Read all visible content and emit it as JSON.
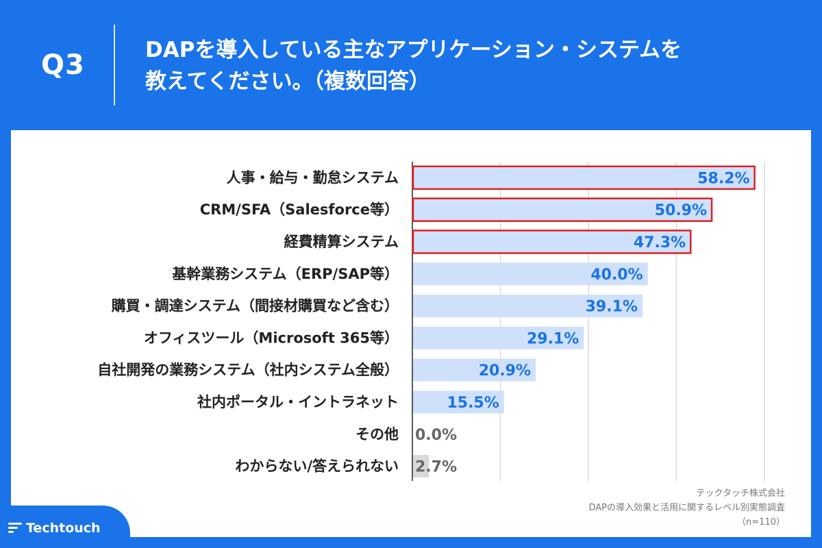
{
  "header": {
    "question_number": "Q3",
    "question_line1": "DAPを導入している主なアプリケーション・システムを",
    "question_line2": "教えてください。（複数回答）"
  },
  "chart_data": {
    "type": "bar",
    "orientation": "horizontal",
    "categories": [
      "人事・給与・勤怠システム",
      "CRM/SFA（Salesforce等）",
      "経費精算システム",
      "基幹業務システム（ERP/SAP等）",
      "購買・調達システム（間接材購買など含む）",
      "オフィスツール（Microsoft 365等）",
      "自社開発の業務システム（社内システム全般）",
      "社内ポータル・イントラネット",
      "その他",
      "わからない/答えられない"
    ],
    "values": [
      58.2,
      50.9,
      47.3,
      40.0,
      39.1,
      29.1,
      20.9,
      15.5,
      0.0,
      2.7
    ],
    "value_labels": [
      "58.2%",
      "50.9%",
      "47.3%",
      "40.0%",
      "39.1%",
      "29.1%",
      "20.9%",
      "15.5%",
      "0.0%",
      "2.7%"
    ],
    "highlighted": [
      true,
      true,
      true,
      false,
      false,
      false,
      false,
      false,
      false,
      false
    ],
    "xlim": [
      0,
      60
    ],
    "gridlines": [
      15,
      30,
      45,
      60
    ],
    "grid": true,
    "bar_color": "#cfe0fb",
    "gray_bar_color": "#d9d9d9",
    "highlight_border_color": "#e02020",
    "value_color": "#1a73e8",
    "gray_value_color": "#666666"
  },
  "source": {
    "company": "テックタッチ株式会社",
    "survey": "DAPの導入効果と活用に関するレベル別実態調査",
    "sample": "（n=110）"
  },
  "brand": {
    "name": "Techtouch",
    "color": "#1a73e8"
  }
}
